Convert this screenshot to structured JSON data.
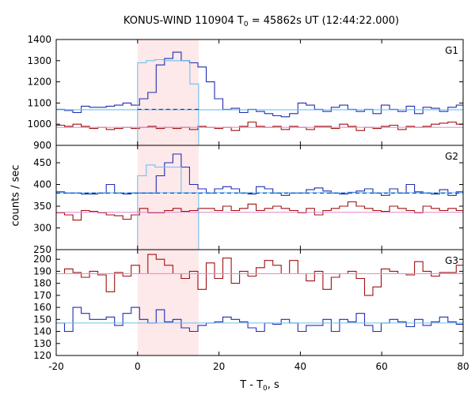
{
  "title": {
    "prefix": "KONUS-WIND 110904 T",
    "sub": "0",
    "suffix": " = 45862s UT (12:44:22.000)"
  },
  "xlabel": {
    "prefix": "T - T",
    "sub": "0",
    "suffix": ", s"
  },
  "ylabel": "counts / sec",
  "chart_data": {
    "type": "line",
    "x_range": [
      -20,
      80
    ],
    "x_ticks": [
      -20,
      0,
      20,
      40,
      60,
      80
    ],
    "highlight_interval": [
      0,
      15
    ],
    "bin_width": 2.048,
    "x_start": -20,
    "colors": {
      "blue": "#1f2eb0",
      "red": "#a01010",
      "light_blue": "#6ec0f0",
      "pink": "#e890d0",
      "band": "#fde8ea"
    },
    "panels": [
      {
        "label": "G1",
        "ylim": [
          900,
          1400
        ],
        "y_ticks": [
          900,
          1000,
          1100,
          1200,
          1300,
          1400
        ],
        "series": [
          {
            "color": "blue",
            "values": [
              1070,
              1065,
              1055,
              1085,
              1080,
              1080,
              1085,
              1090,
              1100,
              1090,
              1120,
              1150,
              1280,
              1310,
              1340,
              1300,
              1290,
              1270,
              1200,
              1120,
              1070,
              1075,
              1055,
              1070,
              1060,
              1050,
              1040,
              1035,
              1050,
              1100,
              1090,
              1070,
              1060,
              1080,
              1090,
              1070,
              1060,
              1070,
              1050,
              1090,
              1070,
              1060,
              1085,
              1050,
              1080,
              1075,
              1060,
              1080,
              1090,
              1095
            ]
          },
          {
            "color": "red",
            "values": [
              995,
              990,
              1000,
              990,
              980,
              985,
              975,
              980,
              985,
              980,
              985,
              990,
              980,
              985,
              980,
              985,
              975,
              990,
              985,
              980,
              985,
              970,
              990,
              1010,
              990,
              985,
              990,
              975,
              990,
              985,
              975,
              990,
              990,
              980,
              1000,
              990,
              970,
              985,
              980,
              990,
              995,
              975,
              990,
              985,
              990,
              1000,
              1005,
              1010,
              1000,
              995
            ]
          }
        ],
        "overlays": [
          {
            "color": "light_blue",
            "type": "step",
            "from": 0,
            "to": 15,
            "values": [
              1290,
              1300,
              1305,
              1300,
              1300,
              1300,
              1190
            ]
          },
          {
            "color": "light_blue",
            "type": "hline",
            "value": 1068,
            "dash": false
          },
          {
            "color": "blue",
            "type": "hline",
            "value": 1070,
            "dash": true,
            "from": 0,
            "to": 15
          },
          {
            "color": "pink",
            "type": "hline",
            "value": 985,
            "dash": false
          }
        ]
      },
      {
        "label": "G2",
        "ylim": [
          250,
          490
        ],
        "y_ticks": [
          250,
          300,
          350,
          400,
          450
        ],
        "series": [
          {
            "color": "blue",
            "values": [
              383,
              380,
              380,
              378,
              378,
              380,
              400,
              380,
              378,
              380,
              380,
              380,
              420,
              450,
              470,
              440,
              400,
              390,
              380,
              390,
              395,
              390,
              380,
              378,
              395,
              390,
              380,
              375,
              380,
              380,
              388,
              392,
              385,
              380,
              378,
              382,
              385,
              390,
              380,
              375,
              390,
              380,
              400,
              383,
              380,
              378,
              388,
              375,
              383,
              385
            ]
          },
          {
            "color": "red",
            "values": [
              335,
              330,
              318,
              340,
              338,
              335,
              330,
              328,
              320,
              330,
              345,
              335,
              335,
              340,
              345,
              338,
              340,
              345,
              345,
              340,
              350,
              340,
              345,
              355,
              340,
              345,
              350,
              345,
              340,
              335,
              345,
              330,
              340,
              345,
              350,
              360,
              350,
              345,
              340,
              338,
              350,
              345,
              340,
              335,
              350,
              345,
              340,
              345,
              340,
              343
            ]
          }
        ],
        "overlays": [
          {
            "color": "light_blue",
            "type": "step",
            "from": 0,
            "to": 15,
            "values": [
              420,
              445,
              440,
              440,
              440,
              380,
              380
            ]
          },
          {
            "color": "light_blue",
            "type": "hline",
            "value": 381,
            "dash": false
          },
          {
            "color": "blue",
            "type": "hline",
            "value": 380,
            "dash": true
          },
          {
            "color": "pink",
            "type": "hline",
            "value": 336,
            "dash": false
          }
        ]
      },
      {
        "label": "G3",
        "ylim": [
          120,
          208
        ],
        "y_ticks": [
          120,
          130,
          140,
          150,
          160,
          170,
          180,
          190,
          200
        ],
        "series": [
          {
            "color": "red",
            "values": [
              188,
              192,
              189,
              185,
              190,
              187,
              173,
              189,
              186,
              195,
              188,
              204,
              200,
              195,
              188,
              184,
              190,
              175,
              197,
              184,
              201,
              180,
              190,
              186,
              193,
              199,
              195,
              188,
              199,
              188,
              182,
              190,
              175,
              185,
              188,
              190,
              184,
              170,
              177,
              192,
              190,
              188,
              187,
              198,
              190,
              186,
              189,
              189,
              195,
              190
            ]
          },
          {
            "color": "blue",
            "values": [
              147,
              140,
              160,
              155,
              150,
              150,
              152,
              145,
              155,
              160,
              150,
              147,
              158,
              148,
              150,
              143,
              140,
              145,
              147,
              148,
              152,
              150,
              148,
              143,
              140,
              147,
              146,
              150,
              147,
              140,
              145,
              145,
              150,
              140,
              150,
              148,
              155,
              145,
              140,
              147,
              150,
              148,
              144,
              150,
              145,
              148,
              152,
              148,
              146,
              140
            ]
          }
        ],
        "overlays": [
          {
            "color": "pink",
            "type": "hline",
            "value": 188,
            "dash": false
          },
          {
            "color": "light_blue",
            "type": "hline",
            "value": 147,
            "dash": false
          }
        ]
      }
    ]
  }
}
